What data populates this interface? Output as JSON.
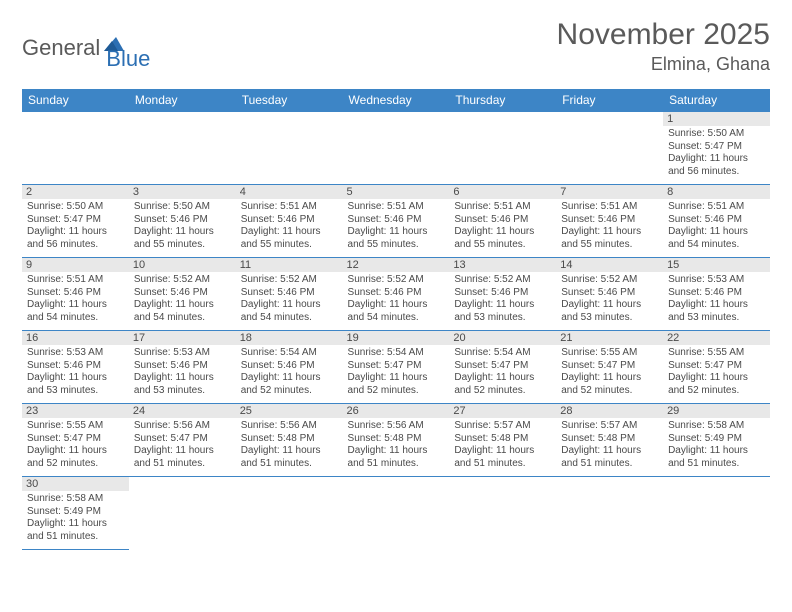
{
  "logo": {
    "part1": "General",
    "part2": "Blue"
  },
  "title": {
    "month": "November 2025",
    "location": "Elmina, Ghana"
  },
  "colors": {
    "header_bg": "#3d85c6",
    "header_text": "#ffffff",
    "daynum_bg": "#e8e8e8",
    "body_text": "#4a4a4a",
    "rule": "#3d85c6",
    "logo_gray": "#5a5a5a",
    "logo_blue": "#2c6fb3"
  },
  "columns": [
    "Sunday",
    "Monday",
    "Tuesday",
    "Wednesday",
    "Thursday",
    "Friday",
    "Saturday"
  ],
  "weeks": [
    [
      null,
      null,
      null,
      null,
      null,
      null,
      {
        "n": "1",
        "sr": "Sunrise: 5:50 AM",
        "ss": "Sunset: 5:47 PM",
        "d1": "Daylight: 11 hours",
        "d2": "and 56 minutes."
      }
    ],
    [
      {
        "n": "2",
        "sr": "Sunrise: 5:50 AM",
        "ss": "Sunset: 5:47 PM",
        "d1": "Daylight: 11 hours",
        "d2": "and 56 minutes."
      },
      {
        "n": "3",
        "sr": "Sunrise: 5:50 AM",
        "ss": "Sunset: 5:46 PM",
        "d1": "Daylight: 11 hours",
        "d2": "and 55 minutes."
      },
      {
        "n": "4",
        "sr": "Sunrise: 5:51 AM",
        "ss": "Sunset: 5:46 PM",
        "d1": "Daylight: 11 hours",
        "d2": "and 55 minutes."
      },
      {
        "n": "5",
        "sr": "Sunrise: 5:51 AM",
        "ss": "Sunset: 5:46 PM",
        "d1": "Daylight: 11 hours",
        "d2": "and 55 minutes."
      },
      {
        "n": "6",
        "sr": "Sunrise: 5:51 AM",
        "ss": "Sunset: 5:46 PM",
        "d1": "Daylight: 11 hours",
        "d2": "and 55 minutes."
      },
      {
        "n": "7",
        "sr": "Sunrise: 5:51 AM",
        "ss": "Sunset: 5:46 PM",
        "d1": "Daylight: 11 hours",
        "d2": "and 55 minutes."
      },
      {
        "n": "8",
        "sr": "Sunrise: 5:51 AM",
        "ss": "Sunset: 5:46 PM",
        "d1": "Daylight: 11 hours",
        "d2": "and 54 minutes."
      }
    ],
    [
      {
        "n": "9",
        "sr": "Sunrise: 5:51 AM",
        "ss": "Sunset: 5:46 PM",
        "d1": "Daylight: 11 hours",
        "d2": "and 54 minutes."
      },
      {
        "n": "10",
        "sr": "Sunrise: 5:52 AM",
        "ss": "Sunset: 5:46 PM",
        "d1": "Daylight: 11 hours",
        "d2": "and 54 minutes."
      },
      {
        "n": "11",
        "sr": "Sunrise: 5:52 AM",
        "ss": "Sunset: 5:46 PM",
        "d1": "Daylight: 11 hours",
        "d2": "and 54 minutes."
      },
      {
        "n": "12",
        "sr": "Sunrise: 5:52 AM",
        "ss": "Sunset: 5:46 PM",
        "d1": "Daylight: 11 hours",
        "d2": "and 54 minutes."
      },
      {
        "n": "13",
        "sr": "Sunrise: 5:52 AM",
        "ss": "Sunset: 5:46 PM",
        "d1": "Daylight: 11 hours",
        "d2": "and 53 minutes."
      },
      {
        "n": "14",
        "sr": "Sunrise: 5:52 AM",
        "ss": "Sunset: 5:46 PM",
        "d1": "Daylight: 11 hours",
        "d2": "and 53 minutes."
      },
      {
        "n": "15",
        "sr": "Sunrise: 5:53 AM",
        "ss": "Sunset: 5:46 PM",
        "d1": "Daylight: 11 hours",
        "d2": "and 53 minutes."
      }
    ],
    [
      {
        "n": "16",
        "sr": "Sunrise: 5:53 AM",
        "ss": "Sunset: 5:46 PM",
        "d1": "Daylight: 11 hours",
        "d2": "and 53 minutes."
      },
      {
        "n": "17",
        "sr": "Sunrise: 5:53 AM",
        "ss": "Sunset: 5:46 PM",
        "d1": "Daylight: 11 hours",
        "d2": "and 53 minutes."
      },
      {
        "n": "18",
        "sr": "Sunrise: 5:54 AM",
        "ss": "Sunset: 5:46 PM",
        "d1": "Daylight: 11 hours",
        "d2": "and 52 minutes."
      },
      {
        "n": "19",
        "sr": "Sunrise: 5:54 AM",
        "ss": "Sunset: 5:47 PM",
        "d1": "Daylight: 11 hours",
        "d2": "and 52 minutes."
      },
      {
        "n": "20",
        "sr": "Sunrise: 5:54 AM",
        "ss": "Sunset: 5:47 PM",
        "d1": "Daylight: 11 hours",
        "d2": "and 52 minutes."
      },
      {
        "n": "21",
        "sr": "Sunrise: 5:55 AM",
        "ss": "Sunset: 5:47 PM",
        "d1": "Daylight: 11 hours",
        "d2": "and 52 minutes."
      },
      {
        "n": "22",
        "sr": "Sunrise: 5:55 AM",
        "ss": "Sunset: 5:47 PM",
        "d1": "Daylight: 11 hours",
        "d2": "and 52 minutes."
      }
    ],
    [
      {
        "n": "23",
        "sr": "Sunrise: 5:55 AM",
        "ss": "Sunset: 5:47 PM",
        "d1": "Daylight: 11 hours",
        "d2": "and 52 minutes."
      },
      {
        "n": "24",
        "sr": "Sunrise: 5:56 AM",
        "ss": "Sunset: 5:47 PM",
        "d1": "Daylight: 11 hours",
        "d2": "and 51 minutes."
      },
      {
        "n": "25",
        "sr": "Sunrise: 5:56 AM",
        "ss": "Sunset: 5:48 PM",
        "d1": "Daylight: 11 hours",
        "d2": "and 51 minutes."
      },
      {
        "n": "26",
        "sr": "Sunrise: 5:56 AM",
        "ss": "Sunset: 5:48 PM",
        "d1": "Daylight: 11 hours",
        "d2": "and 51 minutes."
      },
      {
        "n": "27",
        "sr": "Sunrise: 5:57 AM",
        "ss": "Sunset: 5:48 PM",
        "d1": "Daylight: 11 hours",
        "d2": "and 51 minutes."
      },
      {
        "n": "28",
        "sr": "Sunrise: 5:57 AM",
        "ss": "Sunset: 5:48 PM",
        "d1": "Daylight: 11 hours",
        "d2": "and 51 minutes."
      },
      {
        "n": "29",
        "sr": "Sunrise: 5:58 AM",
        "ss": "Sunset: 5:49 PM",
        "d1": "Daylight: 11 hours",
        "d2": "and 51 minutes."
      }
    ],
    [
      {
        "n": "30",
        "sr": "Sunrise: 5:58 AM",
        "ss": "Sunset: 5:49 PM",
        "d1": "Daylight: 11 hours",
        "d2": "and 51 minutes."
      },
      null,
      null,
      null,
      null,
      null,
      null
    ]
  ]
}
